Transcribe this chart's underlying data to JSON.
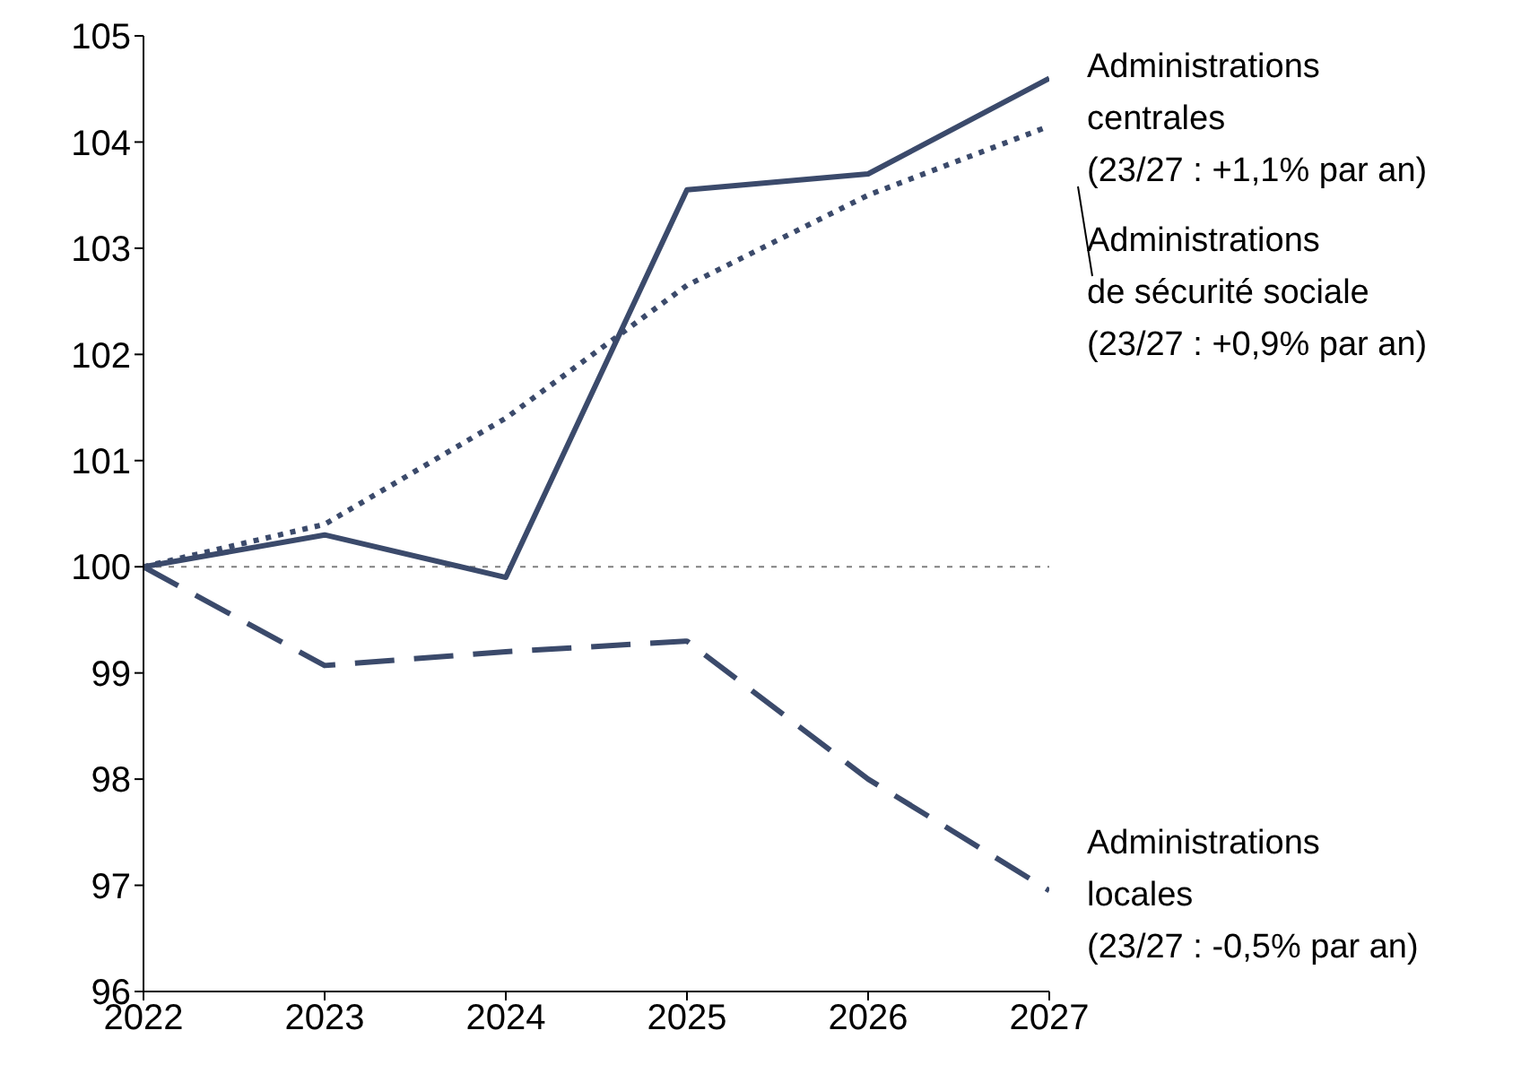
{
  "chart_data": {
    "type": "line",
    "x": [
      2022,
      2023,
      2024,
      2025,
      2026,
      2027
    ],
    "series": [
      {
        "name": "Administrations\ncentrales\n(23/27 : +1,1% par an)",
        "color": "#3b4a6b",
        "line_style": "solid",
        "values": [
          100,
          100.3,
          99.9,
          103.55,
          103.7,
          104.6
        ]
      },
      {
        "name": "Administrations\nde sécurité sociale\n(23/27 : +0,9% par an)",
        "color": "#3b4a6b",
        "line_style": "dotted",
        "values": [
          100,
          100.4,
          101.4,
          102.65,
          103.5,
          104.15
        ]
      },
      {
        "name": "Administrations\nlocales\n(23/27 : -0,5% par an)",
        "color": "#3b4a6b",
        "line_style": "dashed",
        "values": [
          100,
          99.07,
          99.2,
          99.3,
          98.0,
          96.95
        ]
      }
    ],
    "xlim": [
      2022,
      2027
    ],
    "xticks": [
      2022,
      2023,
      2024,
      2025,
      2026,
      2027
    ],
    "ylim": [
      96,
      105
    ],
    "yticks": [
      96,
      97,
      98,
      99,
      100,
      101,
      102,
      103,
      104,
      105
    ],
    "ref_lines": [
      {
        "axis": "y",
        "value": 100,
        "color": "#808080",
        "line_style": "dotted"
      }
    ],
    "marker": "none",
    "grid": false,
    "legend": false
  }
}
